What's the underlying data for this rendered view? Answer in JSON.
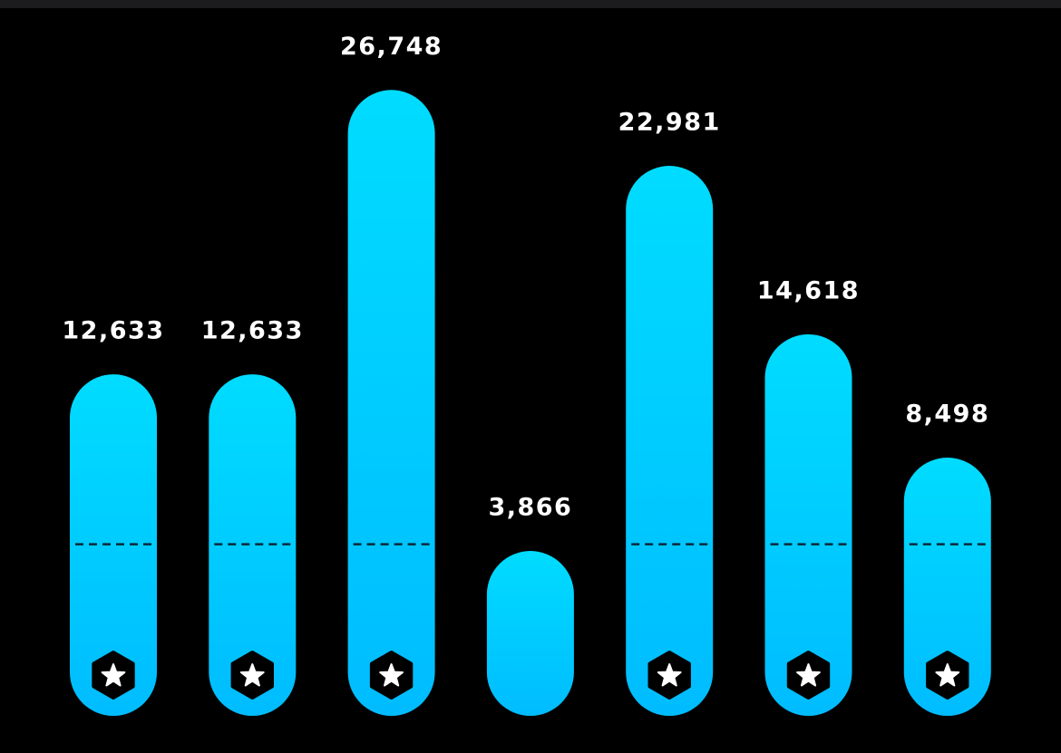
{
  "chart_data": {
    "type": "bar",
    "categories": [
      null,
      null,
      null,
      null,
      null,
      null,
      null
    ],
    "values": [
      12633,
      12633,
      26748,
      3866,
      22981,
      14618,
      8498
    ],
    "value_labels": [
      "12,633",
      "12,633",
      "26,748",
      "3,866",
      "22,981",
      "14,618",
      "8,498"
    ],
    "goal": 4200,
    "ylim": [
      0,
      30000
    ],
    "color": "#00c8ff"
  }
}
